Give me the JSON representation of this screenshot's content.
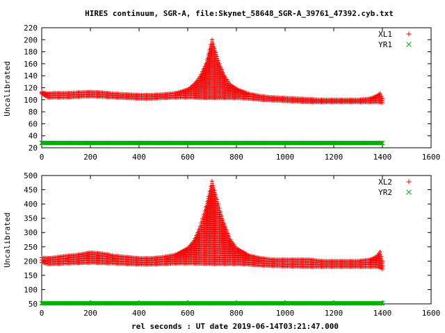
{
  "title": "HIRES continuum, SGR-A, file:Skynet_58648_SGR-A_39761_47392.cyb.txt",
  "xlabel": "rel seconds : UT date 2019-06-14T03:21:47.000",
  "colors": {
    "xl": "#ff0000",
    "yr": "#00b000"
  },
  "chart_data": [
    {
      "type": "scatter",
      "ylabel": "Uncalibrated",
      "xlim": [
        0,
        1600
      ],
      "ylim": [
        20,
        220
      ],
      "xticks": [
        0,
        200,
        400,
        600,
        800,
        1000,
        1200,
        1400,
        1600
      ],
      "yticks": [
        20,
        40,
        60,
        80,
        100,
        120,
        140,
        160,
        180,
        200,
        220
      ],
      "legend_position": "top-right",
      "series": [
        {
          "name": "XL1",
          "marker": "+",
          "x": [
            0,
            25,
            50,
            100,
            150,
            200,
            250,
            300,
            350,
            400,
            450,
            500,
            550,
            600,
            625,
            650,
            675,
            700,
            725,
            750,
            775,
            800,
            850,
            900,
            950,
            1000,
            1050,
            1100,
            1150,
            1200,
            1250,
            1300,
            1350,
            1375,
            1390,
            1400
          ],
          "y": [
            113,
            110,
            111,
            111,
            112,
            113,
            112,
            110,
            109,
            108,
            108,
            109,
            111,
            117,
            125,
            138,
            160,
            200,
            165,
            140,
            125,
            118,
            110,
            106,
            104,
            103,
            102,
            101,
            100,
            100,
            100,
            100,
            102,
            106,
            110,
            102
          ],
          "y_low": [
            110,
            104,
            104,
            104,
            105,
            106,
            105,
            104,
            103,
            102,
            102,
            103,
            104,
            104,
            104,
            103,
            103,
            103,
            103,
            103,
            103,
            103,
            102,
            100,
            99,
            98,
            97,
            96,
            96,
            96,
            96,
            96,
            96,
            96,
            96,
            95
          ]
        },
        {
          "name": "YR1",
          "marker": "x",
          "x": [
            0,
            200,
            400,
            600,
            800,
            1000,
            1200,
            1400
          ],
          "y": [
            28,
            28,
            28,
            28,
            28,
            28,
            28,
            28
          ]
        }
      ]
    },
    {
      "type": "scatter",
      "ylabel": "Uncalibrated",
      "xlim": [
        0,
        1600
      ],
      "ylim": [
        50,
        500
      ],
      "xticks": [
        0,
        200,
        400,
        600,
        800,
        1000,
        1200,
        1400,
        1600
      ],
      "yticks": [
        50,
        100,
        150,
        200,
        250,
        300,
        350,
        400,
        450,
        500
      ],
      "legend_position": "top-right",
      "series": [
        {
          "name": "XL2",
          "marker": "+",
          "x": [
            0,
            25,
            50,
            100,
            150,
            200,
            250,
            300,
            350,
            400,
            450,
            500,
            550,
            600,
            625,
            650,
            675,
            700,
            725,
            750,
            775,
            800,
            850,
            900,
            950,
            1000,
            1050,
            1100,
            1150,
            1200,
            1250,
            1300,
            1350,
            1375,
            1390,
            1400
          ],
          "y": [
            212,
            210,
            212,
            218,
            222,
            230,
            226,
            218,
            214,
            210,
            210,
            214,
            222,
            245,
            270,
            320,
            390,
            480,
            400,
            330,
            275,
            245,
            220,
            210,
            205,
            205,
            205,
            205,
            200,
            200,
            200,
            200,
            205,
            215,
            232,
            200
          ],
          "y_low": [
            195,
            190,
            190,
            192,
            193,
            195,
            193,
            192,
            190,
            188,
            188,
            190,
            192,
            192,
            192,
            191,
            191,
            190,
            190,
            190,
            190,
            190,
            188,
            185,
            183,
            182,
            181,
            180,
            180,
            180,
            180,
            180,
            180,
            180,
            178,
            172
          ]
        },
        {
          "name": "YR2",
          "marker": "x",
          "x": [
            0,
            200,
            400,
            600,
            800,
            1000,
            1200,
            1400
          ],
          "y": [
            52,
            52,
            52,
            52,
            52,
            52,
            52,
            52
          ]
        }
      ]
    }
  ]
}
